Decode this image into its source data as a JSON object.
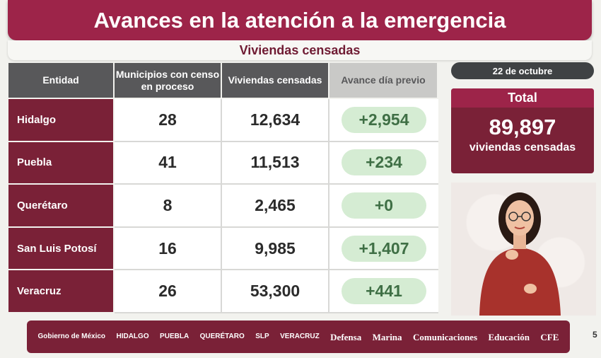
{
  "header": {
    "title": "Avances en la atención a la emergencia",
    "subtitle": "Viviendas censadas"
  },
  "table": {
    "columns": [
      "Entidad",
      "Municipios con censo en proceso",
      "Viviendas censadas",
      "Avance día previo"
    ],
    "rows": [
      {
        "entidad": "Hidalgo",
        "municipios": "28",
        "viviendas": "12,634",
        "avance": "+2,954"
      },
      {
        "entidad": "Puebla",
        "municipios": "41",
        "viviendas": "11,513",
        "avance": "+234"
      },
      {
        "entidad": "Querétaro",
        "municipios": "8",
        "viviendas": "2,465",
        "avance": "+0"
      },
      {
        "entidad": "San Luis Potosí",
        "municipios": "16",
        "viviendas": "9,985",
        "avance": "+1,407"
      },
      {
        "entidad": "Veracruz",
        "municipios": "26",
        "viviendas": "53,300",
        "avance": "+441"
      }
    ]
  },
  "summary": {
    "date": "22 de octubre",
    "total_label": "Total",
    "total_value": "89,897",
    "total_caption": "viviendas censadas"
  },
  "footer": {
    "logos": [
      "Gobierno de México",
      "HIDALGO",
      "PUEBLA",
      "QUERÉTARO",
      "SLP",
      "VERACRUZ",
      "Defensa",
      "Marina",
      "Comunicaciones",
      "Educación",
      "CFE"
    ]
  },
  "page_number": "5",
  "colors": {
    "primary": "#9d2449",
    "dark_primary": "#7a2137",
    "header_gray": "#58585a",
    "pill_green": "#d5ecd3"
  }
}
